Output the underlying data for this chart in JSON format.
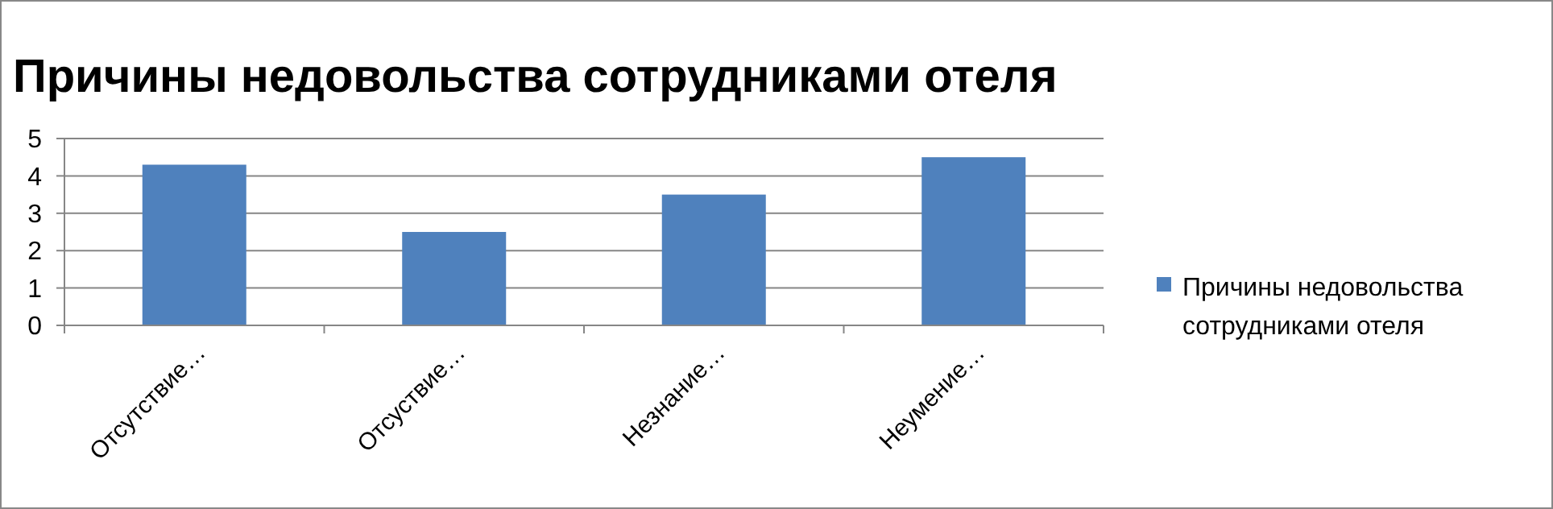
{
  "chart_data": {
    "type": "bar",
    "title": "Причины недовольства сотрудниками отеля",
    "categories": [
      "Отсутствие…",
      "Отсуствие…",
      "Незнание…",
      "Неумение…"
    ],
    "series": [
      {
        "name": "Причины недовольства сотрудниками отеля",
        "color": "#4f81bd",
        "values": [
          4.3,
          2.5,
          3.5,
          4.5
        ]
      }
    ],
    "ylim": [
      0,
      5
    ],
    "yticks": [
      0,
      1,
      2,
      3,
      4,
      5
    ],
    "grid": "y",
    "legend": "right"
  }
}
